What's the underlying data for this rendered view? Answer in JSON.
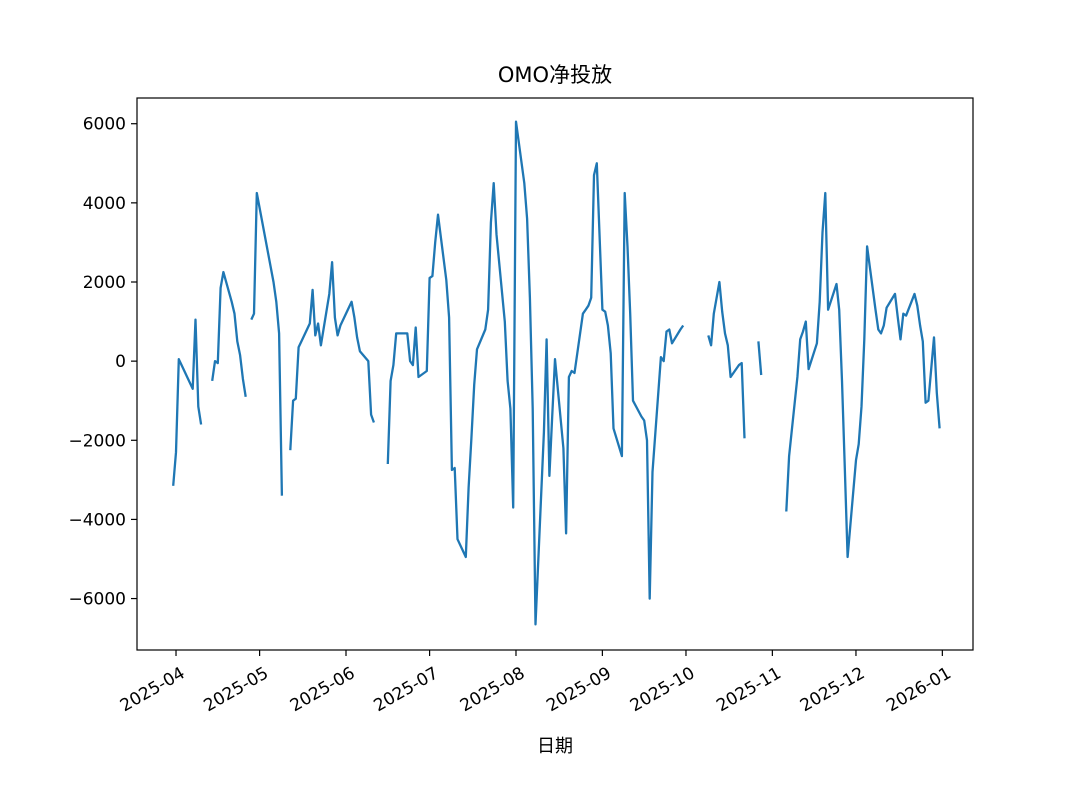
{
  "chart_data": {
    "type": "line",
    "title": "OMO净投放",
    "xlabel": "日期",
    "ylabel": "",
    "xlim": [
      "2025-03-18",
      "2026-01-12"
    ],
    "ylim": [
      -7300,
      6650
    ],
    "grid": false,
    "legend": "none",
    "y_ticks": [
      -6000,
      -4000,
      -2000,
      0,
      2000,
      4000,
      6000
    ],
    "y_tick_labels": [
      "−6000",
      "−4000",
      "−2000",
      "0",
      "2000",
      "4000",
      "6000"
    ],
    "x_ticks": [
      "2025-04-01",
      "2025-05-01",
      "2025-06-01",
      "2025-07-01",
      "2025-08-01",
      "2025-09-01",
      "2025-10-01",
      "2025-11-01",
      "2025-12-01",
      "2026-01-01"
    ],
    "x_tick_labels": [
      "2025-04",
      "2025-05",
      "2025-06",
      "2025-07",
      "2025-08",
      "2025-09",
      "2025-10",
      "2025-11",
      "2025-12",
      "2026-01"
    ],
    "series": [
      {
        "color": "#1f77b4",
        "segments": [
          [
            [
              "2025-03-31",
              -3150
            ],
            [
              "2025-04-01",
              -2300
            ],
            [
              "2025-04-02",
              50
            ],
            [
              "2025-04-03",
              -100
            ],
            [
              "2025-04-07",
              -700
            ],
            [
              "2025-04-08",
              1050
            ],
            [
              "2025-04-09",
              -1150
            ],
            [
              "2025-04-10",
              -1600
            ]
          ],
          [
            [
              "2025-04-14",
              -500
            ],
            [
              "2025-04-15",
              0
            ],
            [
              "2025-04-16",
              -50
            ],
            [
              "2025-04-17",
              1850
            ],
            [
              "2025-04-18",
              2250
            ],
            [
              "2025-04-21",
              1500
            ],
            [
              "2025-04-22",
              1200
            ],
            [
              "2025-04-23",
              500
            ],
            [
              "2025-04-24",
              150
            ],
            [
              "2025-04-25",
              -450
            ],
            [
              "2025-04-26",
              -900
            ]
          ],
          [
            [
              "2025-04-28",
              1050
            ],
            [
              "2025-04-29",
              1200
            ],
            [
              "2025-04-30",
              4250
            ],
            [
              "2025-05-06",
              2000
            ],
            [
              "2025-05-07",
              1500
            ],
            [
              "2025-05-08",
              700
            ],
            [
              "2025-05-09",
              -3400
            ]
          ],
          [
            [
              "2025-05-12",
              -2250
            ],
            [
              "2025-05-13",
              -1000
            ],
            [
              "2025-05-14",
              -950
            ],
            [
              "2025-05-15",
              350
            ],
            [
              "2025-05-16",
              500
            ],
            [
              "2025-05-19",
              950
            ],
            [
              "2025-05-20",
              1800
            ],
            [
              "2025-05-21",
              650
            ],
            [
              "2025-05-22",
              950
            ],
            [
              "2025-05-23",
              400
            ],
            [
              "2025-05-26",
              1700
            ],
            [
              "2025-05-27",
              2500
            ],
            [
              "2025-05-28",
              1100
            ],
            [
              "2025-05-29",
              650
            ],
            [
              "2025-05-30",
              900
            ],
            [
              "2025-06-03",
              1500
            ],
            [
              "2025-06-04",
              1100
            ],
            [
              "2025-06-05",
              600
            ],
            [
              "2025-06-06",
              250
            ],
            [
              "2025-06-09",
              0
            ],
            [
              "2025-06-10",
              -1350
            ],
            [
              "2025-06-11",
              -1550
            ]
          ],
          [
            [
              "2025-06-16",
              -2600
            ],
            [
              "2025-06-17",
              -500
            ],
            [
              "2025-06-18",
              -100
            ],
            [
              "2025-06-19",
              700
            ],
            [
              "2025-06-20",
              700
            ],
            [
              "2025-06-23",
              700
            ],
            [
              "2025-06-24",
              0
            ],
            [
              "2025-06-25",
              -100
            ],
            [
              "2025-06-26",
              850
            ],
            [
              "2025-06-27",
              -400
            ],
            [
              "2025-06-30",
              -250
            ],
            [
              "2025-07-01",
              2100
            ],
            [
              "2025-07-02",
              2150
            ],
            [
              "2025-07-03",
              3000
            ],
            [
              "2025-07-04",
              3700
            ],
            [
              "2025-07-07",
              2050
            ],
            [
              "2025-07-08",
              1100
            ],
            [
              "2025-07-09",
              -2750
            ],
            [
              "2025-07-10",
              -2700
            ],
            [
              "2025-07-11",
              -4500
            ],
            [
              "2025-07-14",
              -4950
            ],
            [
              "2025-07-15",
              -3200
            ],
            [
              "2025-07-16",
              -1950
            ],
            [
              "2025-07-17",
              -600
            ],
            [
              "2025-07-18",
              300
            ],
            [
              "2025-07-21",
              800
            ],
            [
              "2025-07-22",
              1300
            ],
            [
              "2025-07-23",
              3500
            ],
            [
              "2025-07-24",
              4500
            ],
            [
              "2025-07-25",
              3200
            ],
            [
              "2025-07-28",
              1000
            ],
            [
              "2025-07-29",
              -500
            ],
            [
              "2025-07-30",
              -1200
            ],
            [
              "2025-07-31",
              -3700
            ],
            [
              "2025-08-01",
              6050
            ],
            [
              "2025-08-04",
              4500
            ],
            [
              "2025-08-05",
              3600
            ],
            [
              "2025-08-06",
              1600
            ],
            [
              "2025-08-07",
              -1200
            ],
            [
              "2025-08-08",
              -6650
            ],
            [
              "2025-08-11",
              -1800
            ],
            [
              "2025-08-12",
              550
            ],
            [
              "2025-08-13",
              -2900
            ],
            [
              "2025-08-14",
              -1400
            ],
            [
              "2025-08-15",
              50
            ],
            [
              "2025-08-18",
              -2200
            ],
            [
              "2025-08-19",
              -4350
            ],
            [
              "2025-08-20",
              -400
            ],
            [
              "2025-08-21",
              -250
            ],
            [
              "2025-08-22",
              -300
            ],
            [
              "2025-08-25",
              1200
            ],
            [
              "2025-08-26",
              1300
            ],
            [
              "2025-08-27",
              1400
            ],
            [
              "2025-08-28",
              1600
            ],
            [
              "2025-08-29",
              4700
            ],
            [
              "2025-08-30",
              5000
            ],
            [
              "2025-09-01",
              1300
            ],
            [
              "2025-09-02",
              1250
            ],
            [
              "2025-09-03",
              900
            ],
            [
              "2025-09-04",
              200
            ],
            [
              "2025-09-05",
              -1700
            ],
            [
              "2025-09-08",
              -2400
            ],
            [
              "2025-09-09",
              4250
            ],
            [
              "2025-09-10",
              2900
            ],
            [
              "2025-09-11",
              1200
            ],
            [
              "2025-09-12",
              -1000
            ],
            [
              "2025-09-15",
              -1400
            ],
            [
              "2025-09-16",
              -1500
            ],
            [
              "2025-09-17",
              -2000
            ],
            [
              "2025-09-18",
              -6000
            ],
            [
              "2025-09-19",
              -2800
            ],
            [
              "2025-09-22",
              100
            ],
            [
              "2025-09-23",
              0
            ],
            [
              "2025-09-24",
              750
            ],
            [
              "2025-09-25",
              800
            ],
            [
              "2025-09-26",
              450
            ],
            [
              "2025-09-29",
              800
            ],
            [
              "2025-09-30",
              900
            ]
          ],
          [
            [
              "2025-10-09",
              650
            ],
            [
              "2025-10-10",
              400
            ],
            [
              "2025-10-11",
              1200
            ],
            [
              "2025-10-13",
              2000
            ],
            [
              "2025-10-14",
              1250
            ],
            [
              "2025-10-15",
              700
            ],
            [
              "2025-10-16",
              400
            ],
            [
              "2025-10-17",
              -400
            ],
            [
              "2025-10-20",
              -100
            ],
            [
              "2025-10-21",
              -50
            ],
            [
              "2025-10-22",
              -1950
            ]
          ],
          [
            [
              "2025-10-27",
              500
            ],
            [
              "2025-10-28",
              -350
            ]
          ],
          [
            [
              "2025-11-06",
              -3800
            ],
            [
              "2025-11-07",
              -2400
            ],
            [
              "2025-11-10",
              -400
            ],
            [
              "2025-11-11",
              550
            ],
            [
              "2025-11-12",
              750
            ],
            [
              "2025-11-13",
              1000
            ],
            [
              "2025-11-14",
              -200
            ],
            [
              "2025-11-17",
              450
            ],
            [
              "2025-11-18",
              1500
            ],
            [
              "2025-11-19",
              3250
            ],
            [
              "2025-11-20",
              4250
            ],
            [
              "2025-11-21",
              1300
            ],
            [
              "2025-11-24",
              1950
            ],
            [
              "2025-11-25",
              1300
            ],
            [
              "2025-11-26",
              -500
            ],
            [
              "2025-11-27",
              -2700
            ],
            [
              "2025-11-28",
              -4950
            ],
            [
              "2025-12-01",
              -2500
            ],
            [
              "2025-12-02",
              -2100
            ],
            [
              "2025-12-03",
              -1150
            ],
            [
              "2025-12-04",
              550
            ],
            [
              "2025-12-05",
              2900
            ],
            [
              "2025-12-08",
              1300
            ],
            [
              "2025-12-09",
              800
            ],
            [
              "2025-12-10",
              700
            ],
            [
              "2025-12-11",
              900
            ],
            [
              "2025-12-12",
              1350
            ],
            [
              "2025-12-15",
              1700
            ],
            [
              "2025-12-16",
              1100
            ],
            [
              "2025-12-17",
              550
            ],
            [
              "2025-12-18",
              1200
            ],
            [
              "2025-12-19",
              1150
            ],
            [
              "2025-12-22",
              1700
            ],
            [
              "2025-12-23",
              1400
            ],
            [
              "2025-12-24",
              900
            ],
            [
              "2025-12-25",
              500
            ],
            [
              "2025-12-26",
              -1050
            ],
            [
              "2025-12-27",
              -1000
            ],
            [
              "2025-12-29",
              600
            ],
            [
              "2025-12-30",
              -800
            ],
            [
              "2025-12-31",
              -1700
            ]
          ]
        ]
      }
    ]
  }
}
